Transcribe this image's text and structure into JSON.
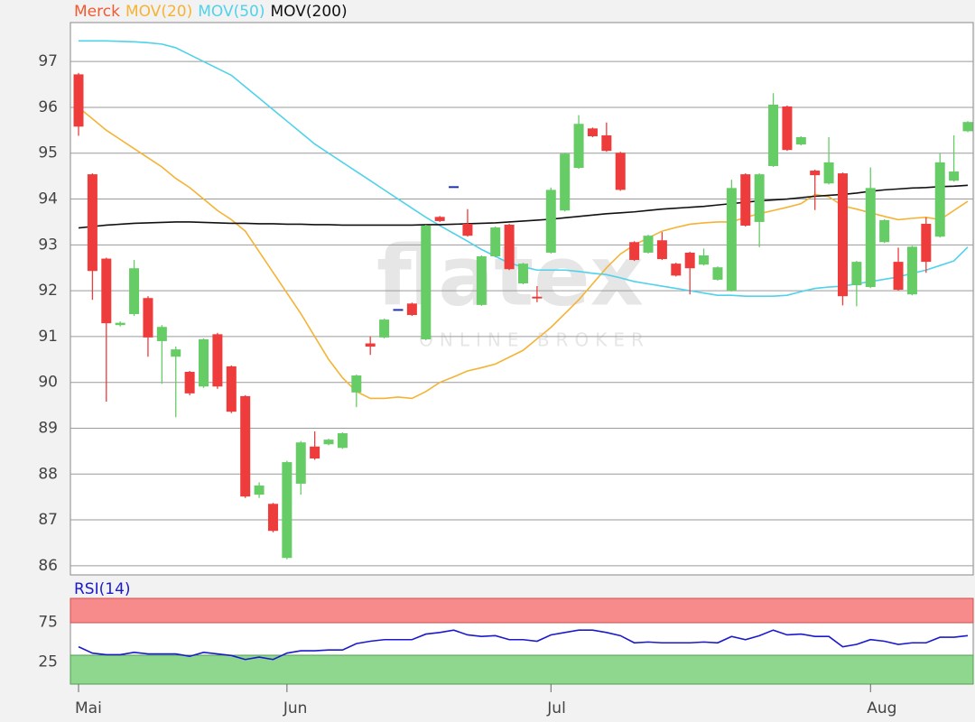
{
  "chart_data": [
    {
      "type": "candlestick",
      "watermark": "flatex",
      "watermark_subtitle": "ONLINE BROKER",
      "up_color": "#66cc66",
      "down_color": "#ee3b3b",
      "doji_color": "#2233aa",
      "categories": [
        "Mai",
        null,
        null,
        null,
        null,
        null,
        null,
        null,
        null,
        null,
        null,
        null,
        null,
        null,
        null,
        "Jun",
        null,
        null,
        null,
        null,
        null,
        null,
        null,
        null,
        null,
        null,
        null,
        null,
        null,
        null,
        null,
        null,
        null,
        null,
        "Jul",
        null,
        null,
        null,
        null,
        null,
        null,
        null,
        null,
        null,
        null,
        null,
        null,
        null,
        null,
        null,
        null,
        null,
        null,
        null,
        null,
        null,
        null,
        "Aug",
        null,
        null,
        null,
        null,
        null,
        null,
        null
      ],
      "ylim": [
        85.8,
        97.85
      ],
      "yticks": [
        86,
        87,
        88,
        89,
        90,
        91,
        92,
        93,
        94,
        95,
        96,
        97
      ],
      "grid": true,
      "series": [
        {
          "name": "Merck",
          "type": "candlestick",
          "color": "#f05a30",
          "open": [
            96.72,
            94.54,
            92.7,
            91.25,
            91.49,
            91.84,
            90.9,
            90.56,
            90.23,
            89.91,
            91.05,
            90.35,
            89.7,
            87.55,
            87.35,
            86.17,
            87.79,
            88.6,
            88.65,
            88.57,
            89.78,
            90.85,
            90.98,
            91.6,
            91.72,
            90.94,
            93.61,
            94.28,
            93.46,
            91.69,
            92.75,
            93.44,
            92.16,
            91.87,
            92.83,
            93.75,
            94.68,
            95.54,
            95.39,
            95.01,
            93.06,
            92.83,
            93.1,
            92.59,
            92.83,
            92.57,
            92.24,
            92.0,
            94.54,
            93.5,
            94.72,
            96.02,
            95.19,
            94.62,
            94.34,
            94.56,
            92.12,
            92.08,
            93.06,
            92.63,
            91.92,
            93.46,
            93.18,
            94.4,
            95.48
          ],
          "high": [
            96.75,
            94.56,
            92.72,
            91.33,
            92.67,
            91.88,
            91.25,
            90.78,
            90.25,
            90.96,
            91.08,
            90.37,
            89.72,
            87.82,
            87.37,
            88.29,
            88.72,
            88.93,
            88.77,
            88.91,
            90.17,
            91.0,
            91.39,
            91.6,
            91.74,
            93.44,
            93.63,
            94.28,
            93.78,
            92.77,
            93.4,
            93.46,
            92.61,
            92.1,
            94.25,
            95.01,
            95.83,
            95.56,
            95.67,
            95.03,
            93.08,
            93.22,
            93.28,
            92.61,
            92.85,
            92.92,
            92.53,
            94.42,
            94.56,
            94.56,
            96.31,
            96.04,
            95.37,
            94.64,
            95.35,
            94.58,
            92.65,
            94.69,
            93.56,
            92.94,
            92.98,
            93.6,
            95.0,
            95.39,
            95.7
          ],
          "low": [
            95.38,
            91.8,
            89.58,
            91.22,
            91.45,
            90.56,
            89.97,
            89.24,
            89.72,
            89.88,
            89.86,
            89.33,
            87.48,
            87.48,
            86.73,
            86.14,
            87.55,
            88.31,
            88.63,
            88.55,
            89.46,
            90.6,
            90.96,
            91.6,
            91.45,
            90.92,
            93.5,
            94.28,
            93.18,
            91.67,
            92.73,
            92.45,
            92.14,
            91.75,
            92.81,
            93.73,
            94.66,
            95.35,
            95.03,
            94.18,
            92.65,
            92.81,
            92.67,
            92.31,
            91.92,
            92.55,
            92.22,
            91.98,
            93.4,
            92.95,
            94.7,
            95.05,
            95.17,
            93.76,
            94.32,
            91.68,
            91.66,
            92.06,
            93.04,
            92.0,
            91.9,
            92.39,
            93.16,
            94.38,
            95.46
          ],
          "close": [
            95.58,
            92.43,
            91.29,
            91.3,
            92.49,
            90.98,
            91.21,
            90.72,
            89.76,
            90.94,
            89.91,
            89.36,
            87.51,
            87.75,
            86.76,
            88.26,
            88.69,
            88.34,
            88.75,
            88.89,
            90.15,
            90.78,
            91.37,
            91.6,
            91.47,
            93.42,
            93.52,
            94.28,
            93.2,
            92.75,
            93.38,
            92.47,
            92.59,
            91.84,
            94.2,
            94.99,
            95.64,
            95.37,
            95.05,
            94.2,
            92.67,
            93.2,
            92.69,
            92.33,
            92.49,
            92.77,
            92.51,
            94.24,
            93.42,
            94.54,
            96.06,
            95.07,
            95.35,
            94.52,
            94.8,
            91.88,
            92.63,
            94.24,
            93.54,
            92.02,
            92.96,
            92.63,
            94.8,
            94.6,
            95.68
          ]
        },
        {
          "name": "MOV(20)",
          "type": "line",
          "color": "#f5b335",
          "values": [
            96.0,
            95.75,
            95.5,
            95.3,
            95.1,
            94.9,
            94.7,
            94.45,
            94.25,
            94.0,
            93.75,
            93.55,
            93.3,
            92.85,
            92.4,
            91.95,
            91.5,
            91.0,
            90.5,
            90.1,
            89.8,
            89.65,
            89.65,
            89.68,
            89.65,
            89.8,
            90.0,
            90.12,
            90.25,
            90.32,
            90.4,
            90.55,
            90.7,
            90.95,
            91.2,
            91.5,
            91.8,
            92.15,
            92.5,
            92.8,
            93.0,
            93.15,
            93.3,
            93.38,
            93.45,
            93.48,
            93.5,
            93.5,
            93.6,
            93.68,
            93.75,
            93.82,
            93.9,
            94.1,
            94.05,
            93.85,
            93.78,
            93.7,
            93.62,
            93.55,
            93.58,
            93.6,
            93.55,
            93.75,
            93.95
          ]
        },
        {
          "name": "MOV(50)",
          "type": "line",
          "color": "#4fd2ea",
          "values": [
            97.45,
            97.45,
            97.45,
            97.44,
            97.43,
            97.41,
            97.38,
            97.3,
            97.15,
            97.0,
            96.85,
            96.7,
            96.45,
            96.2,
            95.95,
            95.7,
            95.45,
            95.2,
            95.0,
            94.8,
            94.6,
            94.4,
            94.2,
            94.0,
            93.8,
            93.6,
            93.42,
            93.25,
            93.08,
            92.9,
            92.75,
            92.6,
            92.52,
            92.45,
            92.45,
            92.45,
            92.42,
            92.38,
            92.35,
            92.28,
            92.2,
            92.15,
            92.1,
            92.05,
            92.0,
            91.95,
            91.9,
            91.9,
            91.88,
            91.88,
            91.88,
            91.9,
            91.98,
            92.05,
            92.08,
            92.1,
            92.15,
            92.2,
            92.25,
            92.3,
            92.38,
            92.45,
            92.55,
            92.65,
            92.95
          ]
        },
        {
          "name": "MOV(200)",
          "type": "line",
          "color": "#111111",
          "values": [
            93.37,
            93.4,
            93.43,
            93.45,
            93.47,
            93.48,
            93.49,
            93.5,
            93.5,
            93.49,
            93.48,
            93.47,
            93.47,
            93.46,
            93.46,
            93.45,
            93.45,
            93.44,
            93.44,
            93.43,
            93.43,
            93.43,
            93.43,
            93.43,
            93.43,
            93.44,
            93.44,
            93.45,
            93.46,
            93.47,
            93.48,
            93.5,
            93.52,
            93.54,
            93.56,
            93.59,
            93.62,
            93.65,
            93.68,
            93.7,
            93.72,
            93.75,
            93.78,
            93.8,
            93.82,
            93.84,
            93.87,
            93.9,
            93.93,
            93.96,
            93.98,
            94.0,
            94.03,
            94.06,
            94.08,
            94.1,
            94.13,
            94.17,
            94.2,
            94.22,
            94.24,
            94.25,
            94.27,
            94.28,
            94.3
          ]
        }
      ]
    },
    {
      "type": "line",
      "ylim": [
        -3,
        105
      ],
      "yticks": [
        25,
        75
      ],
      "series": [
        {
          "name": "RSI(14)",
          "color": "#1a1acc",
          "values": [
            44,
            36,
            34,
            34,
            37,
            35,
            35,
            35,
            32,
            37,
            35,
            33,
            28,
            31,
            28,
            36,
            39,
            39,
            40,
            40,
            48,
            51,
            53,
            53,
            53,
            60,
            62,
            65,
            59,
            57,
            58,
            53,
            53,
            51,
            59,
            62,
            65,
            65,
            62,
            58,
            49,
            50,
            49,
            49,
            49,
            50,
            49,
            57,
            53,
            58,
            65,
            59,
            60,
            57,
            57,
            44,
            47,
            53,
            51,
            47,
            49,
            49,
            56,
            56,
            58
          ]
        }
      ]
    }
  ]
}
